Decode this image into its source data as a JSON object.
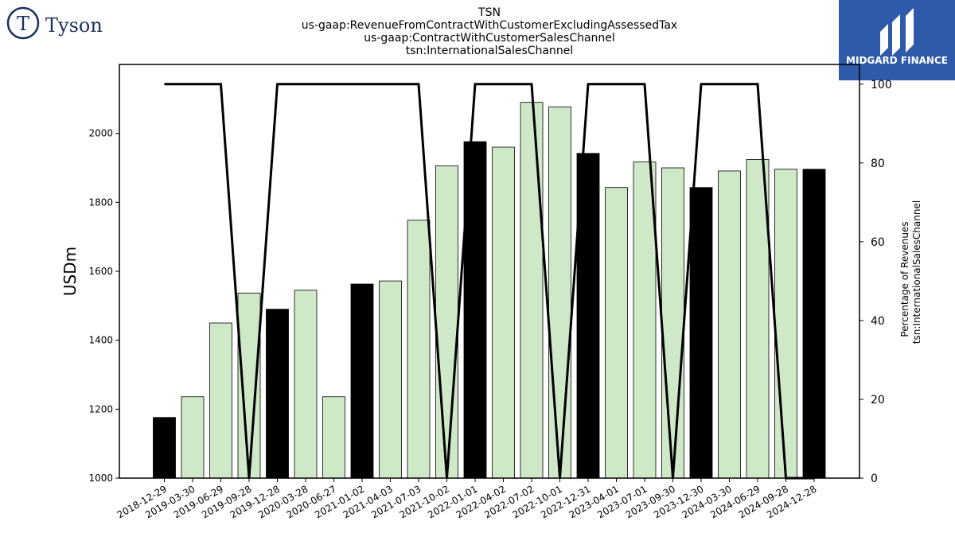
{
  "logos": {
    "company_name": "Tyson",
    "badge_label": "MIDGARD FINANCE",
    "badge_color": "#2f5aaa",
    "company_color": "#1b2f5e"
  },
  "chart_data": {
    "type": "bar",
    "title_lines": [
      "TSN",
      "us-gaap:RevenueFromContractWithCustomerExcludingAssessedTax",
      "us-gaap:ContractWithCustomerSalesChannel",
      "tsn:InternationalSalesChannel"
    ],
    "ylabel": "USDm",
    "ylabel_right": [
      "Percentage of Revenues",
      "tsn:InternationalSalesChannel"
    ],
    "ylim": [
      1000,
      2200
    ],
    "yticks": [
      1000,
      1200,
      1400,
      1600,
      1800,
      2000
    ],
    "ylim_right": [
      0,
      105
    ],
    "yticks_right": [
      0,
      20,
      40,
      60,
      80,
      100
    ],
    "categories": [
      "2018-12-29",
      "2019-03-30",
      "2019-06-29",
      "2019-09-28",
      "2019-12-28",
      "2020-03-28",
      "2020-06-27",
      "2021-01-02",
      "2021-04-03",
      "2021-07-03",
      "2021-10-02",
      "2022-01-01",
      "2022-04-02",
      "2022-07-02",
      "2022-10-01",
      "2022-12-31",
      "2023-04-01",
      "2023-07-01",
      "2023-09-30",
      "2023-12-30",
      "2024-03-30",
      "2024-06-29",
      "2024-09-28",
      "2024-12-28"
    ],
    "values": [
      1176,
      1236,
      1450,
      1537,
      1490,
      1545,
      1236,
      1563,
      1572,
      1748,
      1906,
      1976,
      1960,
      2090,
      2077,
      1942,
      1843,
      1917,
      1900,
      1843,
      1891,
      1924,
      1896,
      1896
    ],
    "bar_colors": [
      "#000000",
      "#cfe8c8",
      "#cfe8c8",
      "#cfe8c8",
      "#000000",
      "#cfe8c8",
      "#cfe8c8",
      "#000000",
      "#cfe8c8",
      "#cfe8c8",
      "#cfe8c8",
      "#000000",
      "#cfe8c8",
      "#cfe8c8",
      "#cfe8c8",
      "#000000",
      "#cfe8c8",
      "#cfe8c8",
      "#cfe8c8",
      "#000000",
      "#cfe8c8",
      "#cfe8c8",
      "#cfe8c8",
      "#000000"
    ],
    "line_series": {
      "axis": "right",
      "color": "#000000",
      "values": [
        100,
        100,
        100,
        0,
        100,
        100,
        100,
        100,
        100,
        100,
        0,
        100,
        100,
        100,
        0,
        100,
        100,
        100,
        0,
        100,
        100,
        100,
        0,
        0
      ]
    },
    "grid": false
  }
}
